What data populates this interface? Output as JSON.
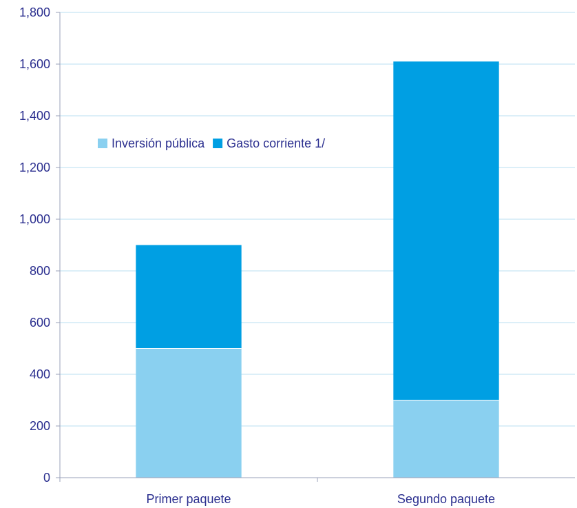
{
  "chart_data": {
    "type": "bar",
    "stacked": true,
    "categories": [
      "Primer paquete",
      "Segundo paquete"
    ],
    "series": [
      {
        "name": "Inversión pública",
        "values": [
          500,
          300
        ],
        "color": "#8ad0f0"
      },
      {
        "name": "Gasto corriente 1/",
        "values": [
          400,
          1310
        ],
        "color": "#009fe3"
      }
    ],
    "ylim": [
      0,
      1800
    ],
    "yticks": [
      "0",
      "200",
      "400",
      "600",
      "800",
      "1,000",
      "1,200",
      "1,400",
      "1,600",
      "1,800"
    ],
    "grid": true,
    "grid_color": "#b8dff0",
    "axis_color": "#9aa0b8",
    "text_color": "#2b2f8f",
    "legend_position": "upper-left"
  }
}
